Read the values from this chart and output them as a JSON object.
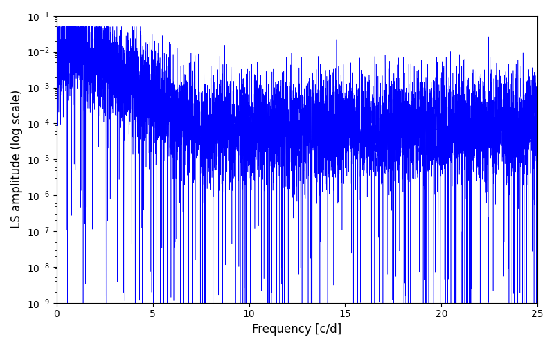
{
  "title": "",
  "xlabel": "Frequency [c/d]",
  "ylabel": "LS amplitude (log scale)",
  "xlim": [
    0,
    25
  ],
  "ylim": [
    1e-09,
    0.1
  ],
  "line_color": "#0000ff",
  "line_width": 0.4,
  "background_color": "#ffffff",
  "figsize": [
    8.0,
    5.0
  ],
  "dpi": 100,
  "freq_max": 25.0,
  "n_points": 15000,
  "seed": 12345
}
